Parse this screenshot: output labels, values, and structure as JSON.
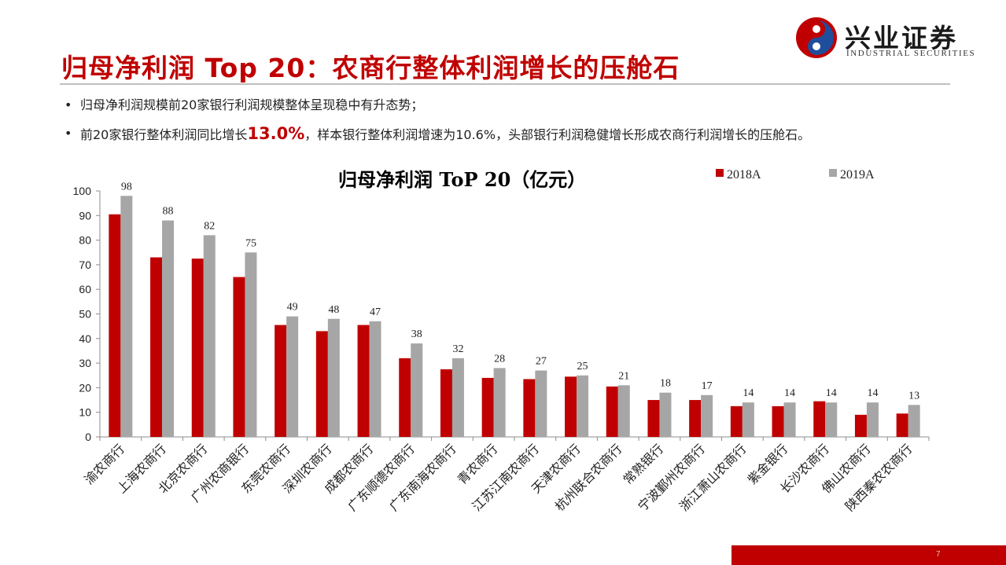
{
  "slide": {
    "title": "归母净利润 Top 20：农商行整体利润增长的压舱石",
    "page_number": "7"
  },
  "brand": {
    "name_cn": "兴业证券",
    "name_en": "INDUSTRIAL SECURITIES",
    "colors": {
      "red": "#c00000",
      "blue": "#1f4e9c"
    }
  },
  "bullets": [
    {
      "text": "归母净利润规模前20家银行利润规模整体呈现稳中有升态势；"
    },
    {
      "pre": "前20家银行整体利润同比增长",
      "highlight": "13.0%",
      "post": "，样本银行整体利润增速为10.6%，头部银行利润稳健增长形成农商行利润增长的压舱石。"
    }
  ],
  "chart_data": {
    "type": "bar",
    "title": "归母净利润 ToP 20（亿元）",
    "categories": [
      "渝农商行",
      "上海农商行",
      "北京农商行",
      "广州农商银行",
      "东莞农商行",
      "深圳农商行",
      "成都农商行",
      "广东顺德农商行",
      "广东南海农商行",
      "青农商行",
      "江苏江南农商行",
      "天津农商行",
      "杭州联合农商行",
      "常熟银行",
      "宁波鄞州农商行",
      "浙江萧山农商行",
      "紫金银行",
      "长沙农商行",
      "佛山农商行",
      "陕西秦农农商行"
    ],
    "series": [
      {
        "name": "2018A",
        "color": "#c00000",
        "values": [
          90.5,
          73,
          72.5,
          65,
          45.5,
          43,
          45.5,
          32,
          27.5,
          24,
          23.5,
          24.5,
          20.5,
          15,
          15,
          12.5,
          12.5,
          14.5,
          9,
          9.5
        ],
        "labels": null
      },
      {
        "name": "2019A",
        "color": "#a6a6a6",
        "values": [
          98,
          88,
          82,
          75,
          49,
          48,
          47,
          38,
          32,
          28,
          27,
          25,
          21,
          18,
          17,
          14,
          14,
          14,
          14,
          13
        ],
        "labels": [
          "98",
          "88",
          "82",
          "75",
          "49",
          "48",
          "47",
          "38",
          "32",
          "28",
          "27",
          "25",
          "21",
          "18",
          "17",
          "14",
          "14",
          "14",
          "14",
          "13"
        ]
      }
    ],
    "ylim": [
      0,
      100
    ],
    "yticks": [
      0,
      10,
      20,
      30,
      40,
      50,
      60,
      70,
      80,
      90,
      100
    ],
    "grid": false,
    "legend_position": "top-right"
  }
}
